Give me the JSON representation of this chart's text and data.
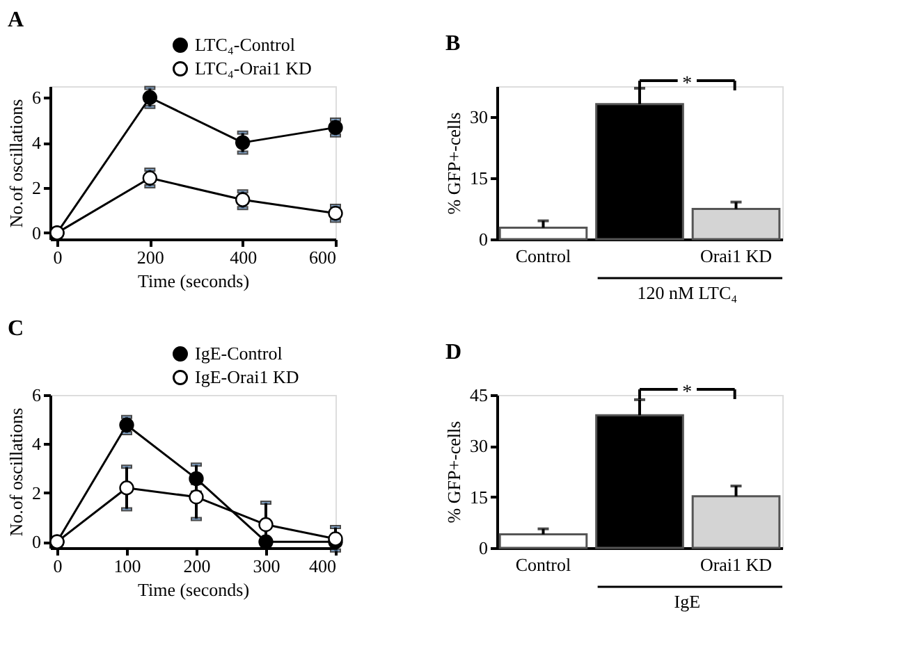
{
  "chart_data": [
    {
      "type": "line",
      "title": "A",
      "xlabel": "Time (seconds)",
      "ylabel": "No.of oscillations",
      "x": [
        0,
        200,
        400,
        600
      ],
      "xlim": [
        -15,
        600
      ],
      "xticks": [
        0,
        200,
        400,
        600
      ],
      "ylim": [
        -0.28,
        6.5
      ],
      "yticks": [
        0,
        2,
        4,
        6
      ],
      "legend": "top right",
      "marker": "circle",
      "grid": false,
      "series": [
        {
          "name": "LTC₄-Control",
          "color": "#000000",
          "values": [
            0,
            6.0,
            4.0,
            4.67
          ],
          "errors": [
            null,
            0.42,
            0.44,
            0.35
          ]
        },
        {
          "name": "LTC₄-Orai1 KD",
          "color": "#000000",
          "values": [
            0,
            2.43,
            1.47,
            0.87
          ],
          "errors": [
            null,
            0.37,
            0.37,
            0.33
          ]
        }
      ]
    },
    {
      "type": "bar",
      "title": "B",
      "ylabel": "% GFP+-cells",
      "categories": [
        "Control",
        null,
        "Orai1 KD"
      ],
      "values": [
        2.8,
        33.1,
        7.4
      ],
      "errors": [
        [
          2.8,
          4.5
        ],
        [
          33.1,
          37.0
        ],
        [
          7.4,
          9.1
        ]
      ],
      "colors": [
        "#ffffff",
        "#000000",
        "#d4d4d4"
      ],
      "ylim": [
        0,
        37.5
      ],
      "yticks": [
        0,
        15,
        30
      ],
      "grid": false,
      "annotations": [
        "*",
        "120 nM LTC₄"
      ]
    },
    {
      "type": "line",
      "title": "C",
      "xlabel": "Time (seconds)",
      "ylabel": "No.of oscillations",
      "x": [
        0,
        100,
        200,
        300,
        400
      ],
      "xlim": [
        -10,
        400
      ],
      "xticks": [
        0,
        100,
        200,
        300,
        400
      ],
      "ylim": [
        -0.25,
        6
      ],
      "yticks": [
        0,
        2,
        4,
        6
      ],
      "legend": "top right",
      "marker": "circle",
      "grid": false,
      "series": [
        {
          "name": "IgE-Control",
          "color": "#000000",
          "values": [
            0,
            4.77,
            2.58,
            0,
            0
          ],
          "errors": [
            null,
            0.33,
            0.57,
            null,
            null
          ]
        },
        {
          "name": "IgE-Orai1 KD",
          "color": "#000000",
          "values": [
            0,
            2.2,
            1.83,
            0.7,
            0.12
          ],
          "errors": [
            null,
            0.87,
            [
              0.93,
              2.4
            ],
            0.9,
            0.48
          ]
        }
      ]
    },
    {
      "type": "bar",
      "title": "D",
      "ylabel": "% GFP+-cells",
      "categories": [
        "Control",
        null,
        "Orai1 KD"
      ],
      "values": [
        4.0,
        39.0,
        15.2
      ],
      "errors": [
        [
          4.0,
          5.6
        ],
        [
          39.0,
          43.6
        ],
        [
          15.2,
          18.2
        ]
      ],
      "colors": [
        "#ffffff",
        "#000000",
        "#d4d4d4"
      ],
      "ylim": [
        0,
        45
      ],
      "yticks": [
        0,
        15,
        30,
        45
      ],
      "grid": false,
      "annotations": [
        "*",
        "IgE"
      ]
    }
  ]
}
